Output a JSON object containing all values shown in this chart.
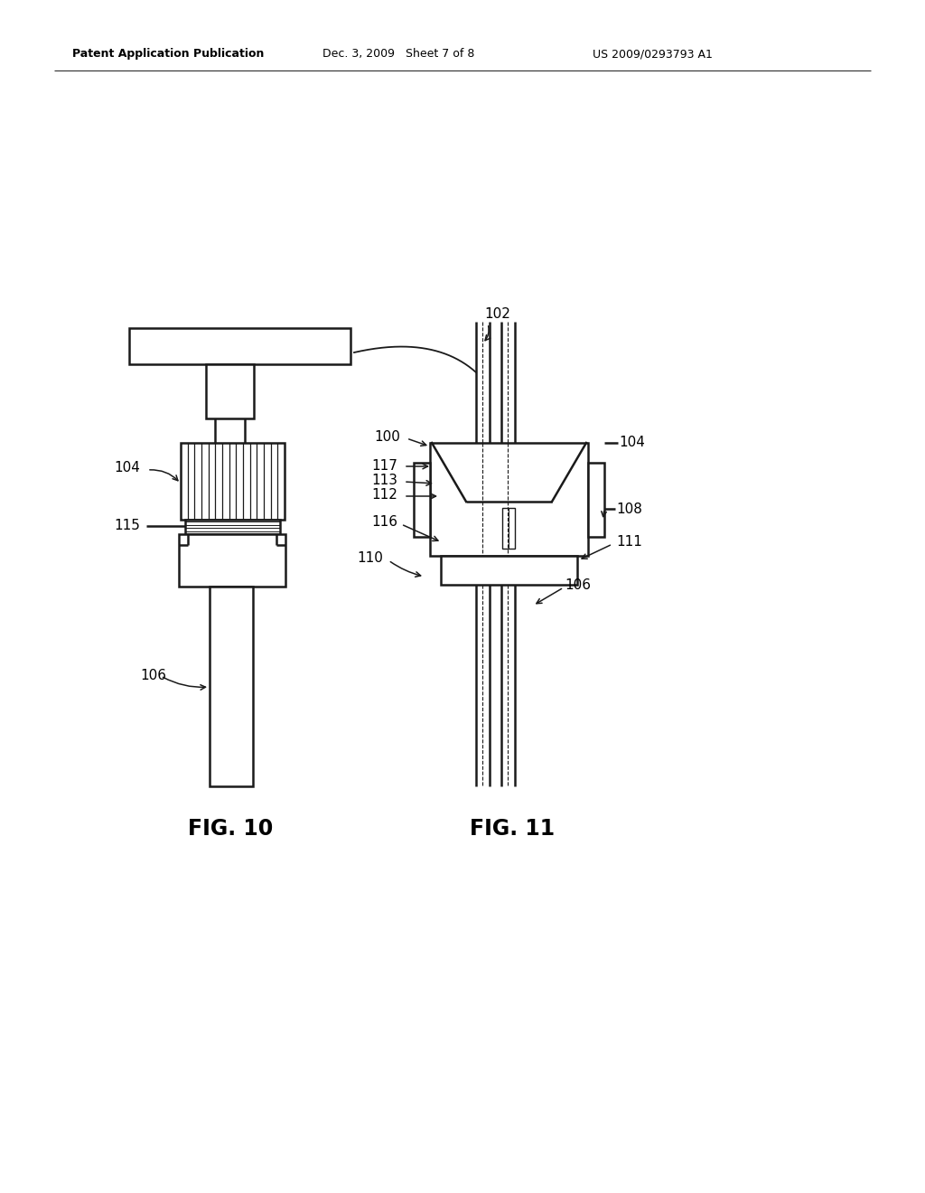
{
  "bg_color": "#ffffff",
  "line_color": "#1a1a1a",
  "header_left": "Patent Application Publication",
  "header_mid": "Dec. 3, 2009   Sheet 7 of 8",
  "header_right": "US 2009/0293793 A1",
  "fig10_label": "FIG. 10",
  "fig11_label": "FIG. 11"
}
